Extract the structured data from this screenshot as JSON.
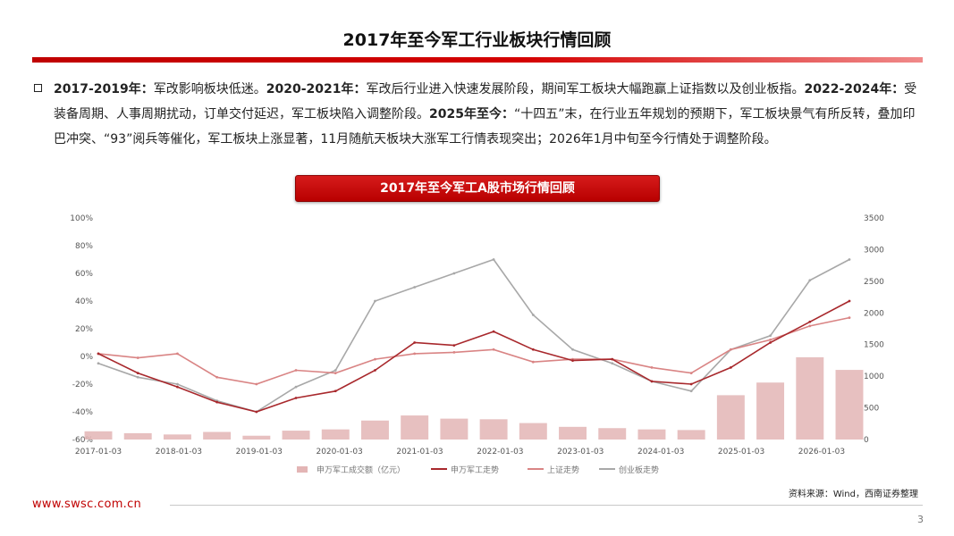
{
  "title": "2017年至今军工行业板块行情回顾",
  "paragraph": [
    {
      "bold": true,
      "text": "2017-2019年："
    },
    {
      "bold": false,
      "text": "军改影响板块低迷。"
    },
    {
      "bold": true,
      "text": "2020-2021年："
    },
    {
      "bold": false,
      "text": "军改后行业进入快速发展阶段，期间军工板块大幅跑赢上证指数以及创业板指。"
    },
    {
      "bold": true,
      "text": "2022-2024年："
    },
    {
      "bold": false,
      "text": "受装备周期、人事周期扰动，订单交付延迟，军工板块陷入调整阶段。"
    },
    {
      "bold": true,
      "text": "2025年至今："
    },
    {
      "bold": false,
      "text": "“十四五”末，在行业五年规划的预期下，军工板块景气有所反转，叠加印巴冲突、“93”阅兵等催化，军工板块上涨显著，11月随航天板块大涨军工行情表现突出；2026年1月中旬至今行情处于调整阶段。"
    }
  ],
  "chart_banner": "2017年至今军工A股市场行情回顾",
  "source_note": "资料来源：Wind，西南证券整理",
  "footer_url": "www.swsc.com.cn",
  "page_number": "3",
  "colors": {
    "accent": "#c00000",
    "volume_bar": "#e3b5b5",
    "military": "#a8282c",
    "shanghai": "#d98484",
    "chinext": "#a8a8a8"
  },
  "chart_data": {
    "type": "line",
    "x": [
      "2017-01-03",
      "2017-07-03",
      "2018-01-03",
      "2018-07-03",
      "2019-01-03",
      "2019-07-03",
      "2020-01-03",
      "2020-07-03",
      "2021-01-03",
      "2021-07-03",
      "2022-01-03",
      "2022-07-03",
      "2023-01-03",
      "2023-07-03",
      "2024-01-03",
      "2024-07-03",
      "2025-01-03",
      "2025-07-03",
      "2026-01-03",
      "2026-02-15"
    ],
    "x_ticks": [
      "2017-01-03",
      "2018-01-03",
      "2019-01-03",
      "2020-01-03",
      "2021-01-03",
      "2022-01-03",
      "2023-01-03",
      "2024-01-03",
      "2025-01-03",
      "2026-01-03"
    ],
    "left_axis": {
      "ticks": [
        "100%",
        "80%",
        "60%",
        "40%",
        "20%",
        "0%",
        "-20%",
        "-40%",
        "-60%"
      ],
      "min": -60,
      "max": 100
    },
    "right_axis": {
      "ticks": [
        "3500",
        "3000",
        "2500",
        "2000",
        "1500",
        "1000",
        "500",
        "0"
      ],
      "min": 0,
      "max": 3500
    },
    "series": [
      {
        "name": "申万军工成交额（亿元）",
        "kind": "bar",
        "axis": "right",
        "values": [
          130,
          100,
          80,
          120,
          60,
          140,
          160,
          300,
          380,
          330,
          320,
          260,
          200,
          180,
          160,
          150,
          700,
          900,
          1300,
          1100
        ]
      },
      {
        "name": "申万军工走势",
        "kind": "line",
        "axis": "left",
        "values": [
          2,
          -12,
          -22,
          -33,
          -40,
          -30,
          -25,
          -10,
          10,
          8,
          18,
          5,
          -3,
          -2,
          -18,
          -20,
          -8,
          10,
          25,
          40
        ]
      },
      {
        "name": "上证走势",
        "kind": "line",
        "axis": "left",
        "values": [
          2,
          -1,
          2,
          -15,
          -20,
          -10,
          -12,
          -2,
          2,
          3,
          5,
          -4,
          -2,
          -2,
          -8,
          -12,
          5,
          12,
          22,
          28
        ]
      },
      {
        "name": "创业板走势",
        "kind": "line",
        "axis": "left",
        "values": [
          -5,
          -15,
          -20,
          -32,
          -40,
          -22,
          -10,
          40,
          50,
          60,
          70,
          30,
          5,
          -5,
          -18,
          -25,
          5,
          15,
          55,
          70
        ]
      }
    ],
    "grid": false,
    "legend_position": "bottom"
  }
}
